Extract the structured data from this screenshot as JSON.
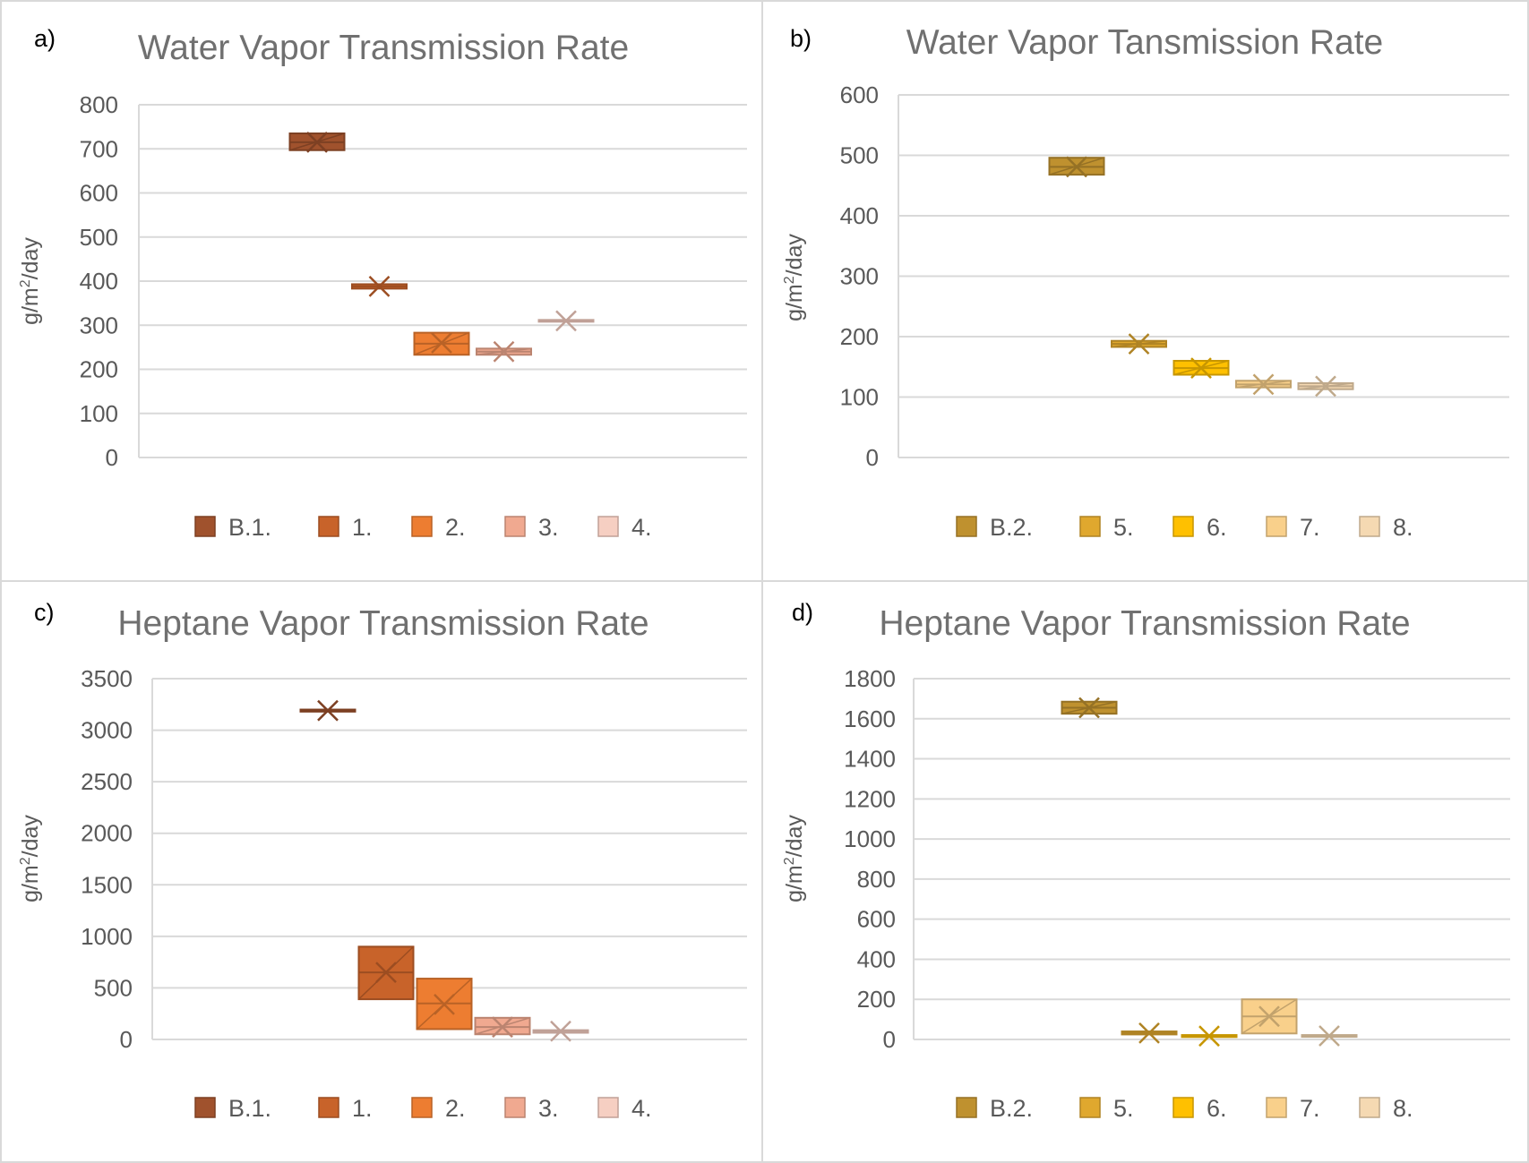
{
  "chart_data": [
    {
      "id": "a",
      "type": "box",
      "panel_label": "a)",
      "title": "Water Vapor Transmission Rate",
      "ylabel": "g/m²/day",
      "ylabel_base": "g/m",
      "ylabel_sup": "2",
      "ylabel_rest": "/day",
      "ylim": [
        0,
        800
      ],
      "yticks": [
        0,
        100,
        200,
        300,
        400,
        500,
        600,
        700,
        800
      ],
      "grid": true,
      "legend_position": "bottom",
      "series": [
        {
          "name": "B.1.",
          "color": "#a0522d",
          "q1": 697,
          "q3": 735,
          "mean": 715,
          "median": 715
        },
        {
          "name": "1.",
          "color": "#c8632a",
          "q1": 383,
          "q3": 393,
          "mean": 388,
          "median": 388
        },
        {
          "name": "2.",
          "color": "#ed7d31",
          "q1": 233,
          "q3": 283,
          "mean": 260,
          "median": 258
        },
        {
          "name": "3.",
          "color": "#f0a990",
          "q1": 233,
          "q3": 247,
          "mean": 240,
          "median": 240
        },
        {
          "name": "4.",
          "color": "#f6cfc2",
          "q1": 308,
          "q3": 312,
          "mean": 310,
          "median": 310
        }
      ]
    },
    {
      "id": "b",
      "type": "box",
      "panel_label": "b)",
      "title": "Water Vapor Tansmission Rate",
      "ylabel": "g/m²/day",
      "ylabel_base": "g/m",
      "ylabel_sup": "2",
      "ylabel_rest": "/day",
      "ylim": [
        0,
        600
      ],
      "yticks": [
        0,
        100,
        200,
        300,
        400,
        500,
        600
      ],
      "grid": true,
      "legend_position": "bottom",
      "series": [
        {
          "name": "B.2.",
          "color": "#bf912f",
          "q1": 468,
          "q3": 496,
          "mean": 481,
          "median": 481
        },
        {
          "name": "5.",
          "color": "#e0a82e",
          "q1": 183,
          "q3": 193,
          "mean": 188,
          "median": 188
        },
        {
          "name": "6.",
          "color": "#ffc000",
          "q1": 137,
          "q3": 160,
          "mean": 148,
          "median": 148
        },
        {
          "name": "7.",
          "color": "#f9d08b",
          "q1": 116,
          "q3": 127,
          "mean": 121,
          "median": 121
        },
        {
          "name": "8.",
          "color": "#f5d9b2",
          "q1": 113,
          "q3": 123,
          "mean": 118,
          "median": 118
        }
      ]
    },
    {
      "id": "c",
      "type": "box",
      "panel_label": "c)",
      "title": "Heptane Vapor Transmission Rate",
      "ylabel": "g/m²/day",
      "ylabel_base": "g/m",
      "ylabel_sup": "2",
      "ylabel_rest": "/day",
      "ylim": [
        0,
        3500
      ],
      "yticks": [
        0,
        500,
        1000,
        1500,
        2000,
        2500,
        3000,
        3500
      ],
      "grid": true,
      "legend_position": "bottom",
      "series": [
        {
          "name": "B.1.",
          "color": "#a0522d",
          "q1": 3180,
          "q3": 3200,
          "mean": 3190,
          "median": 3190
        },
        {
          "name": "1.",
          "color": "#c8632a",
          "q1": 390,
          "q3": 900,
          "mean": 650,
          "median": 650
        },
        {
          "name": "2.",
          "color": "#ed7d31",
          "q1": 100,
          "q3": 590,
          "mean": 340,
          "median": 350
        },
        {
          "name": "3.",
          "color": "#f0a990",
          "q1": 50,
          "q3": 210,
          "mean": 120,
          "median": 120
        },
        {
          "name": "4.",
          "color": "#f6cfc2",
          "q1": 65,
          "q3": 90,
          "mean": 80,
          "median": 80
        }
      ]
    },
    {
      "id": "d",
      "type": "box",
      "panel_label": "d)",
      "title": "Heptane Vapor Transmission Rate",
      "ylabel": "g/m²/day",
      "ylabel_base": "g/m",
      "ylabel_sup": "2",
      "ylabel_rest": "/day",
      "ylim": [
        0,
        1800
      ],
      "yticks": [
        0,
        200,
        400,
        600,
        800,
        1000,
        1200,
        1400,
        1600,
        1800
      ],
      "grid": true,
      "legend_position": "bottom",
      "series": [
        {
          "name": "B.2.",
          "color": "#bf912f",
          "q1": 1625,
          "q3": 1685,
          "mean": 1655,
          "median": 1655
        },
        {
          "name": "5.",
          "color": "#e0a82e",
          "q1": 25,
          "q3": 40,
          "mean": 32,
          "median": 32
        },
        {
          "name": "6.",
          "color": "#ffc000",
          "q1": 12,
          "q3": 22,
          "mean": 17,
          "median": 17
        },
        {
          "name": "7.",
          "color": "#f9d08b",
          "q1": 30,
          "q3": 200,
          "mean": 115,
          "median": 115
        },
        {
          "name": "8.",
          "color": "#f5d9b2",
          "q1": 14,
          "q3": 22,
          "mean": 18,
          "median": 18
        }
      ]
    }
  ]
}
